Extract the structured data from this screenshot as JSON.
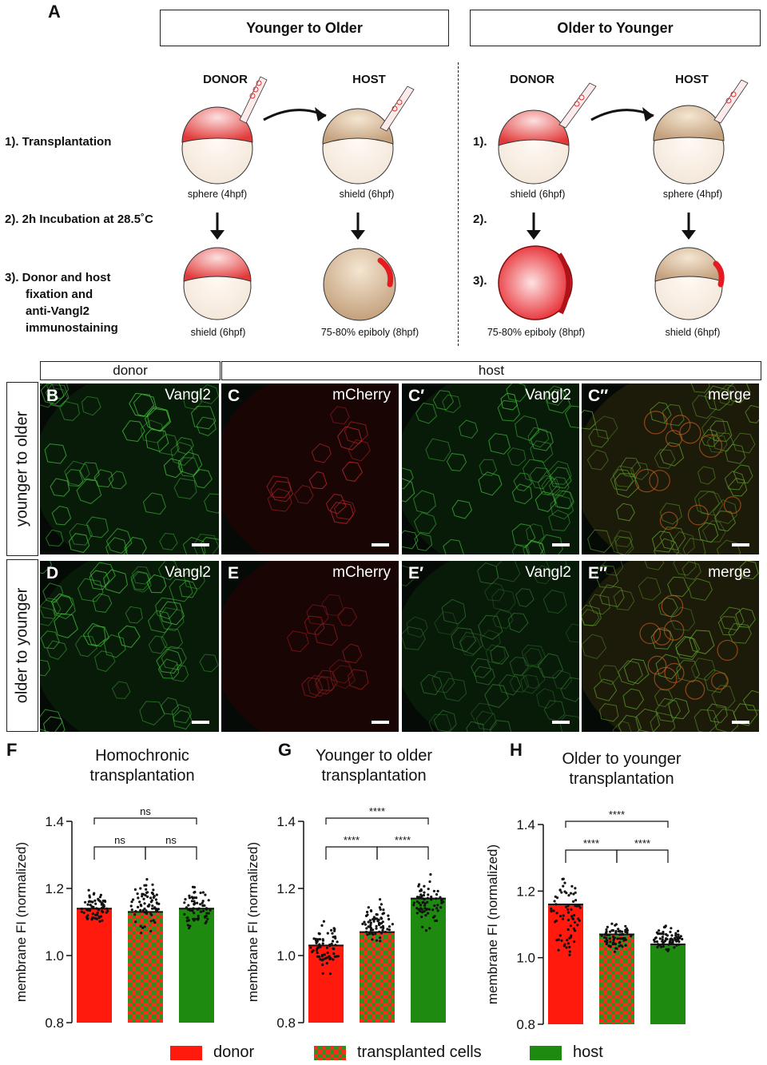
{
  "panel_a": {
    "letter": "A",
    "left_title": "Younger to Older",
    "right_title": "Older to Younger",
    "donor_label": "DONOR",
    "host_label": "HOST",
    "step1_full": "1). Transplantation",
    "step2_full": "2). 2h Incubation at 28.5˚C",
    "step3_lines": [
      "3).  Donor and host",
      "fixation and",
      "anti-Vangl2",
      "immunostaining"
    ],
    "step1_short": "1).",
    "step2_short": "2).",
    "step3_short": "3).",
    "left_stages": {
      "donor_top": "sphere (4hpf)",
      "host_top": "shield (6hpf)",
      "donor_bottom": "shield (6hpf)",
      "host_bottom": "75-80% epiboly (8hpf)"
    },
    "right_stages": {
      "donor_top": "shield (6hpf)",
      "host_top": "sphere (4hpf)",
      "donor_bottom": "75-80% epiboly (8hpf)",
      "host_bottom": "shield (6hpf)"
    }
  },
  "micrographs": {
    "donor_header": "donor",
    "host_header": "host",
    "row1_label": "younger to older",
    "row2_label": "older to younger",
    "panels": [
      {
        "letter": "B",
        "label": "Vangl2",
        "stain": "green"
      },
      {
        "letter": "C",
        "label": "mCherry",
        "stain": "red"
      },
      {
        "letter": "C′",
        "label": "Vangl2",
        "stain": "green"
      },
      {
        "letter": "C″",
        "label": "merge",
        "stain": "merge"
      },
      {
        "letter": "D",
        "label": "Vangl2",
        "stain": "green"
      },
      {
        "letter": "E",
        "label": "mCherry",
        "stain": "red"
      },
      {
        "letter": "E′",
        "label": "Vangl2",
        "stain": "green"
      },
      {
        "letter": "E″",
        "label": "merge",
        "stain": "merge"
      }
    ]
  },
  "chart_data": [
    {
      "type": "bar",
      "panel": "F",
      "title": "Homochronic transplantation",
      "title_lines": [
        "Homochronic",
        "transplantation"
      ],
      "ylabel": "membrane FI (normalized)",
      "ylim": [
        0.8,
        1.4
      ],
      "yticks": [
        "0.8",
        "1.0",
        "1.2",
        "1.4"
      ],
      "categories": [
        "donor",
        "transplanted cells",
        "host"
      ],
      "values": [
        1.14,
        1.13,
        1.14
      ],
      "scatter_range": [
        [
          1.07,
          1.21
        ],
        [
          1.04,
          1.26
        ],
        [
          1.05,
          1.23
        ]
      ],
      "significance": [
        {
          "pair": [
            0,
            1
          ],
          "label": "ns"
        },
        {
          "pair": [
            1,
            2
          ],
          "label": "ns"
        },
        {
          "pair": [
            0,
            2
          ],
          "label": "ns"
        }
      ]
    },
    {
      "type": "bar",
      "panel": "G",
      "title": "Younger to older transplantation",
      "title_lines": [
        "Younger to older",
        "transplantation"
      ],
      "ylabel": "membrane FI (normalized)",
      "ylim": [
        0.8,
        1.4
      ],
      "yticks": [
        "0.8",
        "1.0",
        "1.2",
        "1.4"
      ],
      "categories": [
        "donor",
        "transplanted cells",
        "host"
      ],
      "values": [
        1.03,
        1.07,
        1.17
      ],
      "scatter_range": [
        [
          0.91,
          1.14
        ],
        [
          1.01,
          1.18
        ],
        [
          1.06,
          1.26
        ]
      ],
      "significance": [
        {
          "pair": [
            0,
            1
          ],
          "label": "****"
        },
        {
          "pair": [
            1,
            2
          ],
          "label": "****"
        },
        {
          "pair": [
            0,
            2
          ],
          "label": "****"
        }
      ]
    },
    {
      "type": "bar",
      "panel": "H",
      "title": "Older to younger transplantation",
      "title_lines": [
        "Older to younger",
        "transplantation"
      ],
      "ylabel": "membrane FI (normalized)",
      "ylim": [
        0.8,
        1.4
      ],
      "yticks": [
        "0.8",
        "1.0",
        "1.2",
        "1.4"
      ],
      "categories": [
        "donor",
        "transplanted cells",
        "host"
      ],
      "values": [
        1.16,
        1.07,
        1.04
      ],
      "scatter_range": [
        [
          0.97,
          1.3
        ],
        [
          1.01,
          1.12
        ],
        [
          1.0,
          1.11
        ]
      ],
      "significance": [
        {
          "pair": [
            0,
            1
          ],
          "label": "****"
        },
        {
          "pair": [
            1,
            2
          ],
          "label": "****"
        },
        {
          "pair": [
            0,
            2
          ],
          "label": "****"
        }
      ]
    }
  ],
  "legend": {
    "donor": "donor",
    "transplanted": "transplanted cells",
    "host": "host"
  },
  "colors": {
    "donor": "#ff1a0d",
    "host": "#1f8a10",
    "checker_a": "#ff2a1a",
    "checker_b": "#2f8f1f"
  }
}
